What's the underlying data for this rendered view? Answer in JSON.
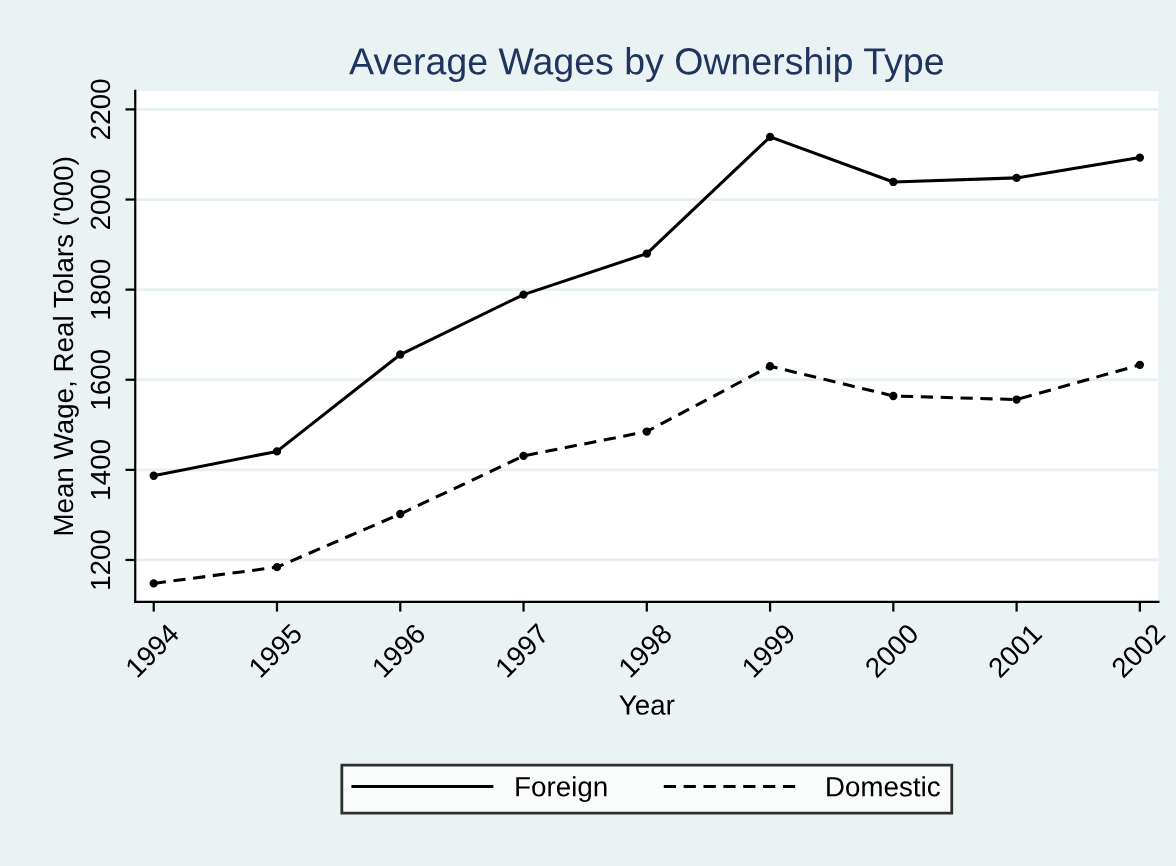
{
  "chart_data": {
    "type": "line",
    "title": "Average Wages by Ownership Type",
    "xlabel": "Year",
    "ylabel": "Mean Wage, Real Tolars ('000)",
    "x": [
      1994,
      1995,
      1996,
      1997,
      1998,
      1999,
      2000,
      2001,
      2002
    ],
    "series": [
      {
        "name": "Foreign",
        "color": "#000000",
        "line_style": "solid",
        "values": [
          1387,
          1441,
          1656,
          1789,
          1880,
          2139,
          2039,
          2048,
          2093
        ]
      },
      {
        "name": "Domestic",
        "color": "#000000",
        "line_style": "dashed",
        "values": [
          1148,
          1184,
          1302,
          1431,
          1485,
          1630,
          1564,
          1556,
          1633
        ]
      }
    ],
    "xlim": [
      1993.85,
      2002.15
    ],
    "xticks": [
      1994,
      1995,
      1996,
      1997,
      1998,
      1999,
      2000,
      2001,
      2002
    ],
    "ylim": [
      1107,
      2241
    ],
    "yticks": [
      1200,
      1400,
      1600,
      1800,
      2000,
      2200
    ],
    "grid": "y",
    "legend": "bottom",
    "marker": "circle"
  }
}
